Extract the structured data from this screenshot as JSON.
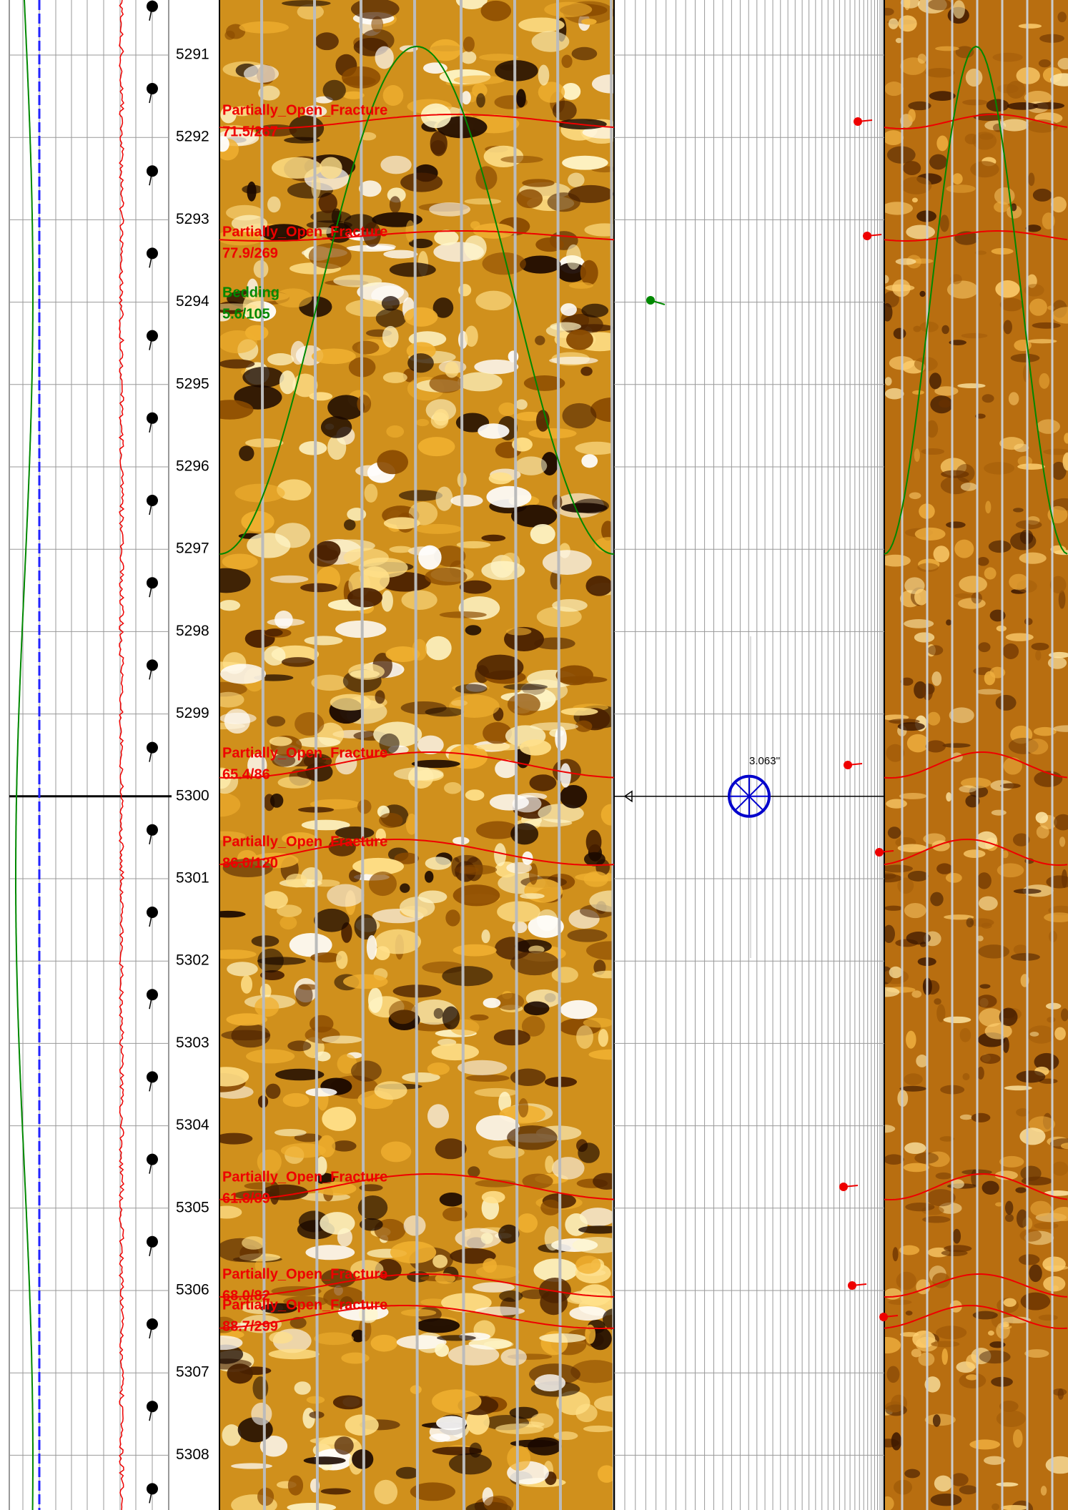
{
  "depth_track": {
    "ticks": [
      5291,
      5292,
      5293,
      5294,
      5295,
      5296,
      5297,
      5298,
      5299,
      5300,
      5301,
      5302,
      5303,
      5304,
      5305,
      5306,
      5307,
      5308
    ]
  },
  "annotations": [
    {
      "name": "Partially_Open_Fracture",
      "dip_azimuth": "71.5/267"
    },
    {
      "name": "Partially_Open_Fracture",
      "dip_azimuth": "77.9/269"
    },
    {
      "name": "Bedding",
      "dip_azimuth": "5.6/105"
    },
    {
      "name": "Partially_Open_Fracture",
      "dip_azimuth": "65.4/86"
    },
    {
      "name": "Partially_Open_Fracture",
      "dip_azimuth": "86.0/120"
    },
    {
      "name": "Partially_Open_Fracture",
      "dip_azimuth": "61.8/89"
    },
    {
      "name": "Partially_Open_Fracture",
      "dip_azimuth": "68.0/82"
    },
    {
      "name": "Partially_Open_Fracture",
      "dip_azimuth": "88.7/299"
    }
  ],
  "compass": {
    "label": "3.063''"
  }
}
